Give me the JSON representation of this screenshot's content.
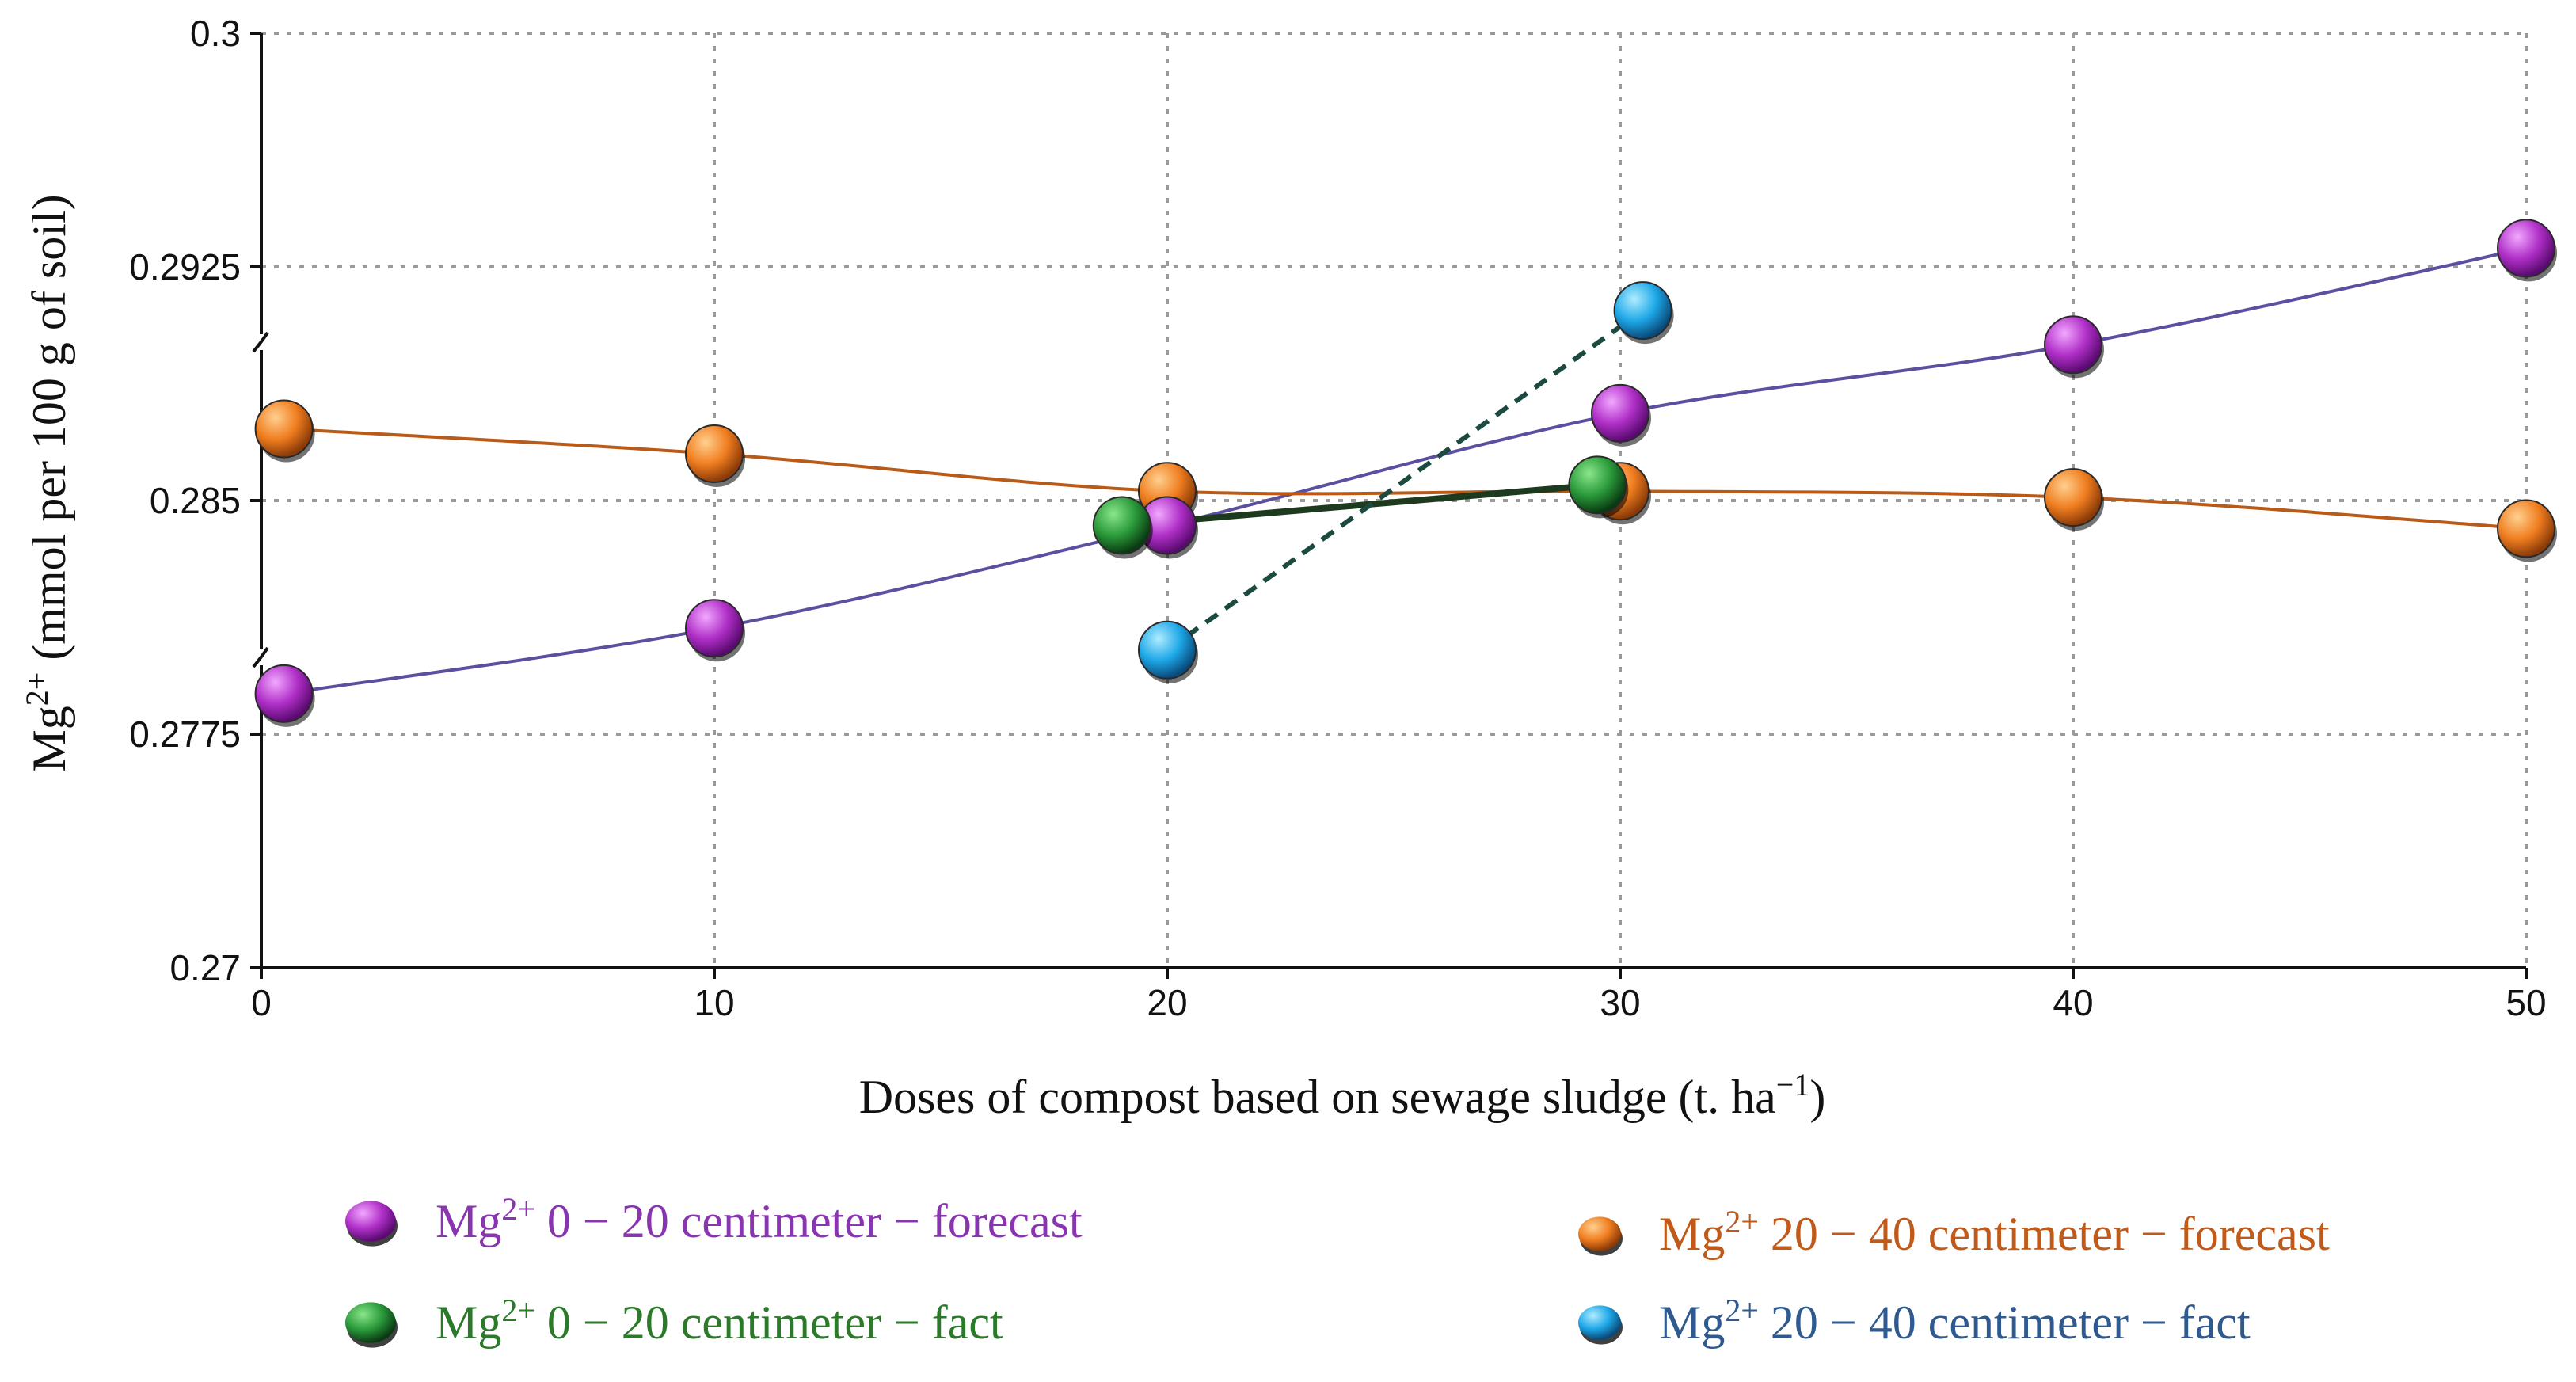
{
  "chart_data": {
    "type": "line",
    "xlabel": "Doses of compost based on sewage sludge (t. ha",
    "xlabel_sup": "−1",
    "xlabel_end": ")",
    "ylabel_pre": "Mg",
    "ylabel_sup": "2+",
    "ylabel_post": " (mmol per 100 g of soil)",
    "xlim": [
      0,
      50
    ],
    "ylim": [
      0.27,
      0.3
    ],
    "x_ticks": [
      0,
      10,
      20,
      30,
      40,
      50
    ],
    "x_tick_labels": [
      "0",
      "10",
      "20",
      "30",
      "40",
      "50"
    ],
    "y_ticks": [
      0.27,
      0.2775,
      0.285,
      0.2925,
      0.3
    ],
    "y_tick_labels": [
      "0.27",
      "0.2775",
      "0.285",
      "0.2925",
      "0.3"
    ],
    "grid": true,
    "legend_position": "bottom",
    "series": [
      {
        "id": "fc0_20",
        "name": "0 − 20 centimeter − forecast",
        "prefix": "Mg",
        "sup": "2+",
        "line_color": "#5b4fa0",
        "marker_color": "#b030c8",
        "text_color": "#8a35b0",
        "line_style": "solid",
        "x": [
          0.5,
          10,
          20,
          30,
          40,
          50
        ],
        "y": [
          0.2788,
          0.2809,
          0.2842,
          0.2878,
          0.29,
          0.2931
        ]
      },
      {
        "id": "fc20_40",
        "name": "20 − 40 centimeter − forecast",
        "prefix": "Mg",
        "sup": "2+",
        "line_color": "#b85a18",
        "marker_color": "#f07e20",
        "text_color": "#c05a1a",
        "line_style": "solid",
        "x": [
          0.5,
          10,
          20,
          30,
          40,
          50
        ],
        "y": [
          0.2873,
          0.2865,
          0.2853,
          0.2853,
          0.2851,
          0.2841
        ]
      },
      {
        "id": "fact0_20",
        "name": "0 − 20 centimeter − fact",
        "prefix": "Mg",
        "sup": "2+",
        "line_color": "#1e3a1e",
        "marker_color": "#2a9a3a",
        "text_color": "#2a7a2a",
        "line_style": "solid",
        "x": [
          19,
          29.5
        ],
        "y": [
          0.2842,
          0.2855
        ]
      },
      {
        "id": "fact20_40",
        "name": "20 − 40 centimeter − fact",
        "prefix": "Mg",
        "sup": "2+",
        "line_color": "#1a4a40",
        "marker_color": "#1ea8e8",
        "text_color": "#2e5a90",
        "line_style": "dashed",
        "x": [
          20,
          30.5
        ],
        "y": [
          0.2802,
          0.2911
        ]
      }
    ]
  },
  "legend": {
    "left": [
      "fc0_20",
      "fact0_20"
    ],
    "right": [
      "fc20_40",
      "fact20_40"
    ]
  }
}
